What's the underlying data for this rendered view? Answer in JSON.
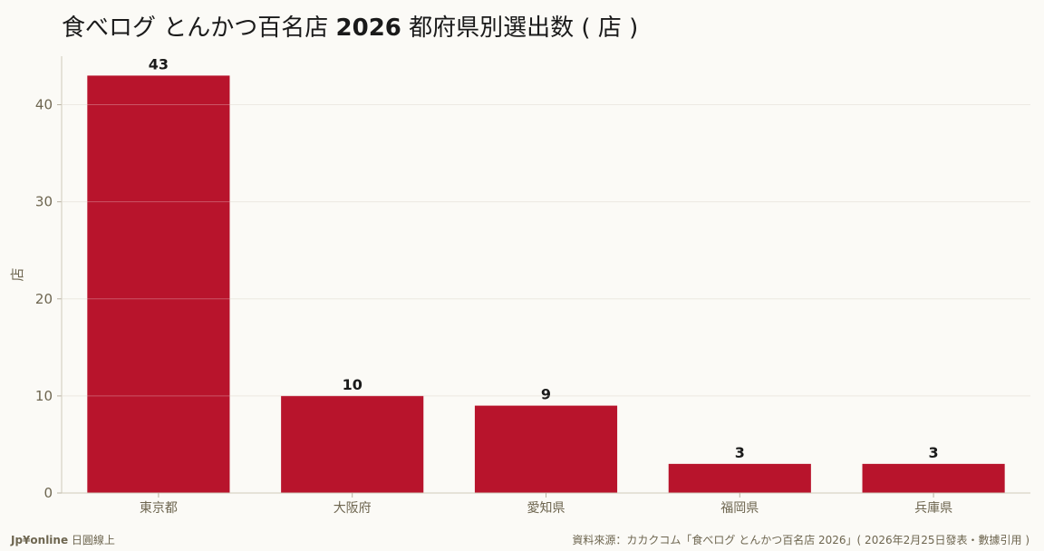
{
  "title": {
    "prefix": "食べログ とんかつ百名店 ",
    "year": "2026",
    "suffix": " 都府県別選出数 ( 店 )"
  },
  "footer": {
    "brand": "Jp¥online",
    "brand_suffix": " 日圓線上",
    "source": "資料來源：カカクコム「食べログ とんかつ百名店 2026」( 2026年2月25日發表・數據引用 )"
  },
  "colors": {
    "bar": "#b8142c",
    "grid": "#e6e2d8",
    "axis_text": "#6e6650",
    "label_text": "#1a1a1a"
  },
  "chart_data": {
    "type": "bar",
    "categories": [
      "東京都",
      "大阪府",
      "愛知県",
      "福岡県",
      "兵庫県"
    ],
    "values": [
      43,
      10,
      9,
      3,
      3
    ],
    "title": "食べログ とんかつ百名店 2026 都府県別選出数 ( 店 )",
    "xlabel": "",
    "ylabel": "店",
    "ylim": [
      0,
      45
    ],
    "yticks": [
      0,
      10,
      20,
      30,
      40
    ],
    "grid": true,
    "data_labels": true
  }
}
